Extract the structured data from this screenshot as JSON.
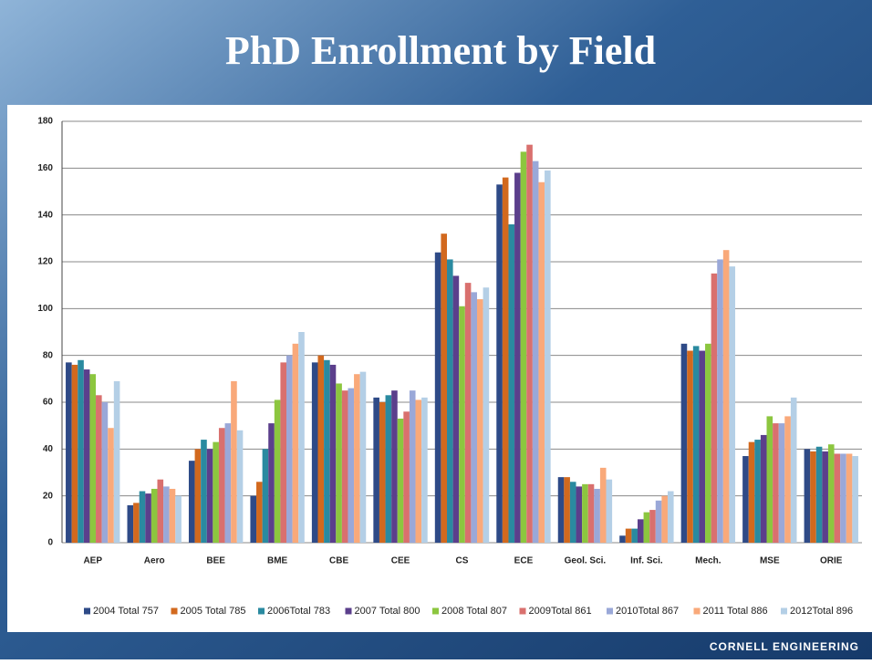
{
  "chart_data": {
    "type": "bar",
    "title": "PhD Enrollment by Field",
    "categories": [
      "AEP",
      "Aero",
      "BEE",
      "BME",
      "CBE",
      "CEE",
      "CS",
      "ECE",
      "Geol. Sci.",
      "Inf. Sci.",
      "Mech.",
      "MSE",
      "ORIE"
    ],
    "series": [
      {
        "name": "2004 Total 757",
        "color": "#2e4a87",
        "values": [
          77,
          16,
          35,
          20,
          77,
          62,
          124,
          153,
          28,
          3,
          85,
          37,
          40
        ]
      },
      {
        "name": "2005 Total 785",
        "color": "#d2691e",
        "values": [
          76,
          17,
          40,
          26,
          80,
          60,
          132,
          156,
          28,
          6,
          82,
          43,
          39
        ]
      },
      {
        "name": "2006Total 783",
        "color": "#2a8aa0",
        "values": [
          78,
          22,
          44,
          40,
          78,
          63,
          121,
          136,
          26,
          6,
          84,
          44,
          41
        ]
      },
      {
        "name": "2007 Total 800",
        "color": "#5b3f8c",
        "values": [
          74,
          21,
          40,
          51,
          76,
          65,
          114,
          158,
          24,
          10,
          82,
          46,
          39
        ]
      },
      {
        "name": "2008 Total 807",
        "color": "#8cc63f",
        "values": [
          72,
          23,
          43,
          61,
          68,
          53,
          101,
          167,
          25,
          13,
          85,
          54,
          42
        ]
      },
      {
        "name": "2009Total 861",
        "color": "#d9706e",
        "values": [
          63,
          27,
          49,
          77,
          65,
          56,
          111,
          170,
          25,
          14,
          115,
          51,
          38
        ]
      },
      {
        "name": "2010Total 867",
        "color": "#9aa8d8",
        "values": [
          60,
          24,
          51,
          80,
          66,
          65,
          107,
          163,
          23,
          18,
          121,
          51,
          38
        ]
      },
      {
        "name": "2011 Total 886",
        "color": "#f9a97a",
        "values": [
          49,
          23,
          69,
          85,
          72,
          61,
          104,
          154,
          32,
          20,
          125,
          54,
          38
        ]
      },
      {
        "name": "2012Total 896",
        "color": "#b4cfe6",
        "values": [
          69,
          20,
          48,
          90,
          73,
          62,
          109,
          159,
          27,
          22,
          118,
          62,
          37
        ]
      }
    ],
    "ylim": [
      0,
      180
    ],
    "yticks": [
      0,
      20,
      40,
      60,
      80,
      100,
      120,
      140,
      160,
      180
    ],
    "grid": true
  },
  "footer": "CORNELL ENGINEERING"
}
